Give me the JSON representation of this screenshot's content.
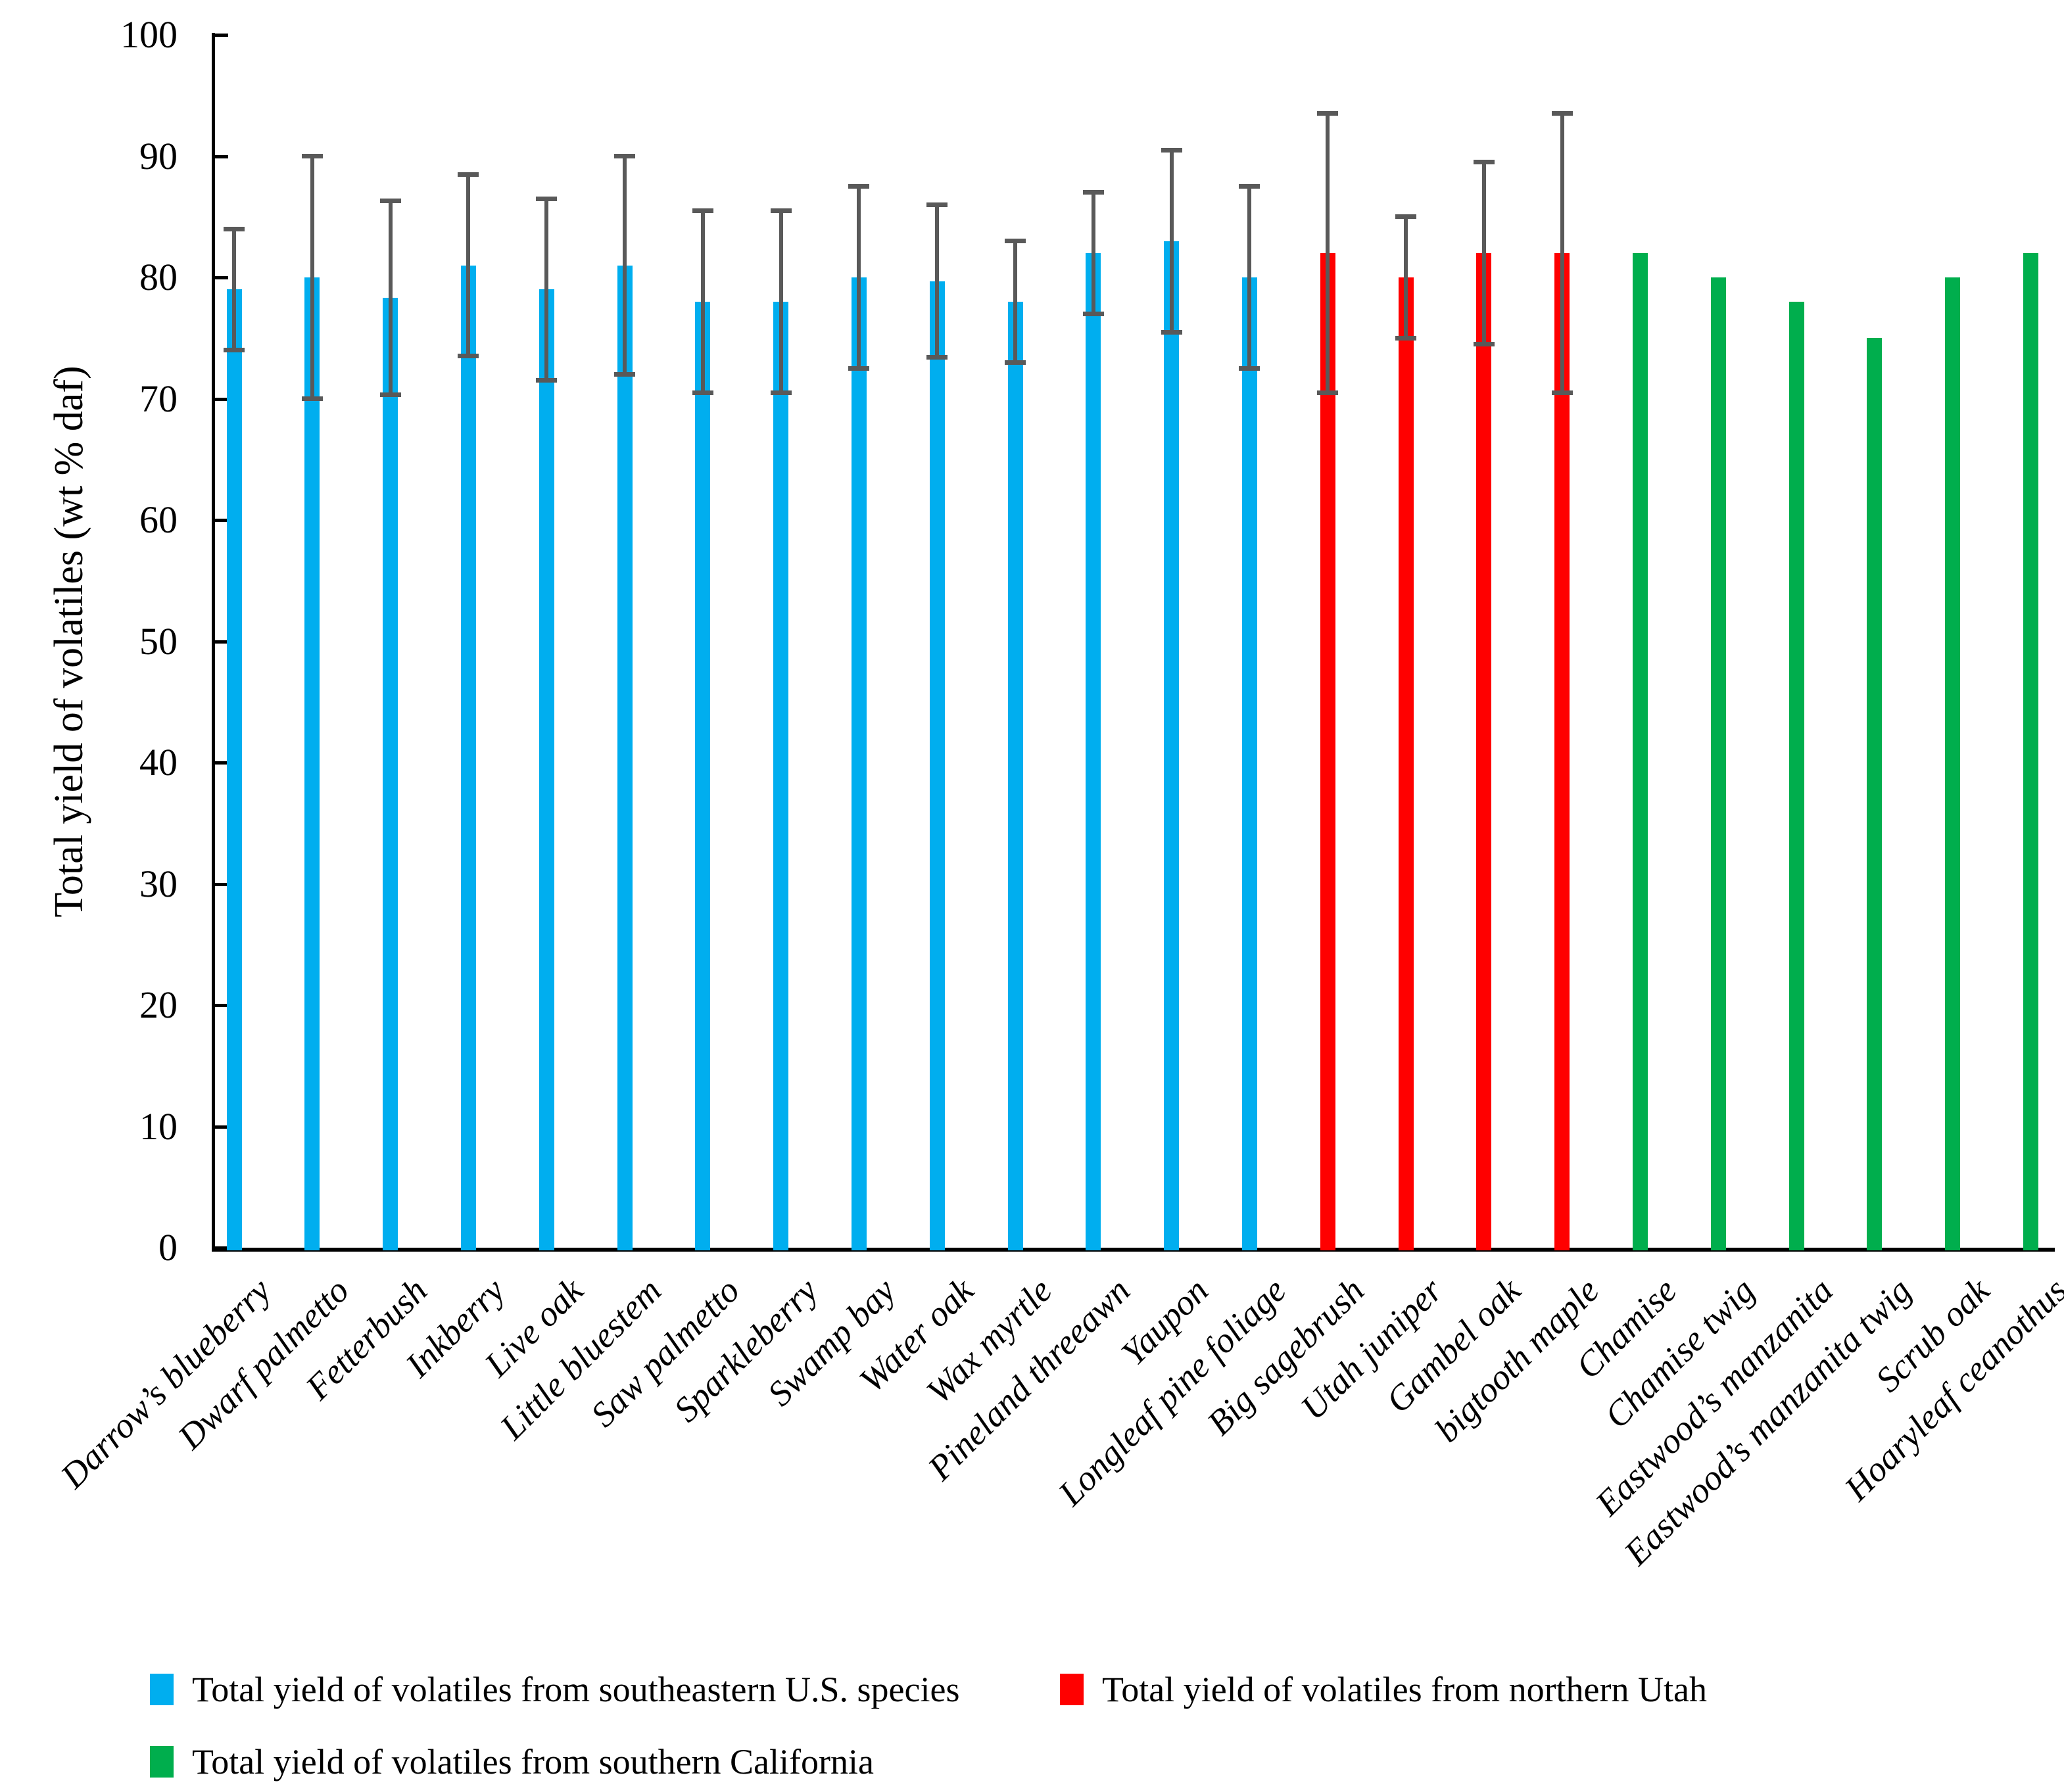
{
  "chart_data": {
    "type": "bar",
    "title": "",
    "ylabel": "Total yield of volatiles (wt % daf)",
    "xlabel": "",
    "ylim": [
      0,
      100
    ],
    "yticks": [
      0,
      10,
      20,
      30,
      40,
      50,
      60,
      70,
      80,
      90,
      100
    ],
    "grid": false,
    "legend_position": "bottom-left two rows",
    "colors": {
      "southeastern_us": "#00AEEF",
      "northern_utah": "#FF0000",
      "southern_california": "#00AE4D",
      "error_bar": "#595959",
      "axis": "#000000"
    },
    "bars": [
      {
        "label": "Darrow’s blueberry",
        "value": 79,
        "err_low": 74,
        "err_high": 84,
        "group": "southeastern_us"
      },
      {
        "label": "Dwarf palmetto",
        "value": 80,
        "err_low": 70,
        "err_high": 90,
        "group": "southeastern_us"
      },
      {
        "label": "Fetterbush",
        "value": 78.3,
        "err_low": 70.3,
        "err_high": 86.3,
        "group": "southeastern_us"
      },
      {
        "label": "Inkberry",
        "value": 81,
        "err_low": 73.5,
        "err_high": 88.5,
        "group": "southeastern_us"
      },
      {
        "label": "Live oak",
        "value": 79,
        "err_low": 71.5,
        "err_high": 86.5,
        "group": "southeastern_us"
      },
      {
        "label": "Little bluestem",
        "value": 81,
        "err_low": 72,
        "err_high": 90,
        "group": "southeastern_us"
      },
      {
        "label": "Saw palmetto",
        "value": 78,
        "err_low": 70.5,
        "err_high": 85.5,
        "group": "southeastern_us"
      },
      {
        "label": "Sparkleberry",
        "value": 78,
        "err_low": 70.5,
        "err_high": 85.5,
        "group": "southeastern_us"
      },
      {
        "label": "Swamp bay",
        "value": 80,
        "err_low": 72.5,
        "err_high": 87.5,
        "group": "southeastern_us"
      },
      {
        "label": "Water oak",
        "value": 79.7,
        "err_low": 73.4,
        "err_high": 86,
        "group": "southeastern_us"
      },
      {
        "label": "Wax myrtle",
        "value": 78,
        "err_low": 73,
        "err_high": 83,
        "group": "southeastern_us"
      },
      {
        "label": "Pineland threeawn",
        "value": 82,
        "err_low": 77,
        "err_high": 87,
        "group": "southeastern_us"
      },
      {
        "label": "Yaupon",
        "value": 83,
        "err_low": 75.5,
        "err_high": 90.5,
        "group": "southeastern_us"
      },
      {
        "label": "Longleaf pine foliage",
        "value": 80,
        "err_low": 72.5,
        "err_high": 87.5,
        "group": "southeastern_us"
      },
      {
        "label": "Big sagebrush",
        "value": 82,
        "err_low": 70.5,
        "err_high": 93.5,
        "group": "northern_utah"
      },
      {
        "label": "Utah juniper",
        "value": 80,
        "err_low": 75,
        "err_high": 85,
        "group": "northern_utah"
      },
      {
        "label": "Gambel oak",
        "value": 82,
        "err_low": 74.5,
        "err_high": 89.5,
        "group": "northern_utah"
      },
      {
        "label": "bigtooth maple",
        "value": 82,
        "err_low": 70.5,
        "err_high": 93.5,
        "group": "northern_utah"
      },
      {
        "label": "Chamise",
        "value": 82,
        "err_low": null,
        "err_high": null,
        "group": "southern_california"
      },
      {
        "label": "Chamise twig",
        "value": 80,
        "err_low": null,
        "err_high": null,
        "group": "southern_california"
      },
      {
        "label": "Eastwood’s manzanita",
        "value": 78,
        "err_low": null,
        "err_high": null,
        "group": "southern_california"
      },
      {
        "label": "Eastwood’s manzanita twig",
        "value": 75,
        "err_low": null,
        "err_high": null,
        "group": "southern_california"
      },
      {
        "label": "Scrub oak",
        "value": 80,
        "err_low": null,
        "err_high": null,
        "group": "southern_california"
      },
      {
        "label": "Hoaryleaf ceanothus",
        "value": 82,
        "err_low": null,
        "err_high": null,
        "group": "southern_california"
      }
    ],
    "legend": [
      {
        "label": "Total yield of volatiles from southeastern U.S. species",
        "color_key": "southeastern_us"
      },
      {
        "label": "Total yield of volatiles from northern Utah",
        "color_key": "northern_utah"
      },
      {
        "label": "Total yield of volatiles from southern California",
        "color_key": "southern_california"
      }
    ]
  }
}
